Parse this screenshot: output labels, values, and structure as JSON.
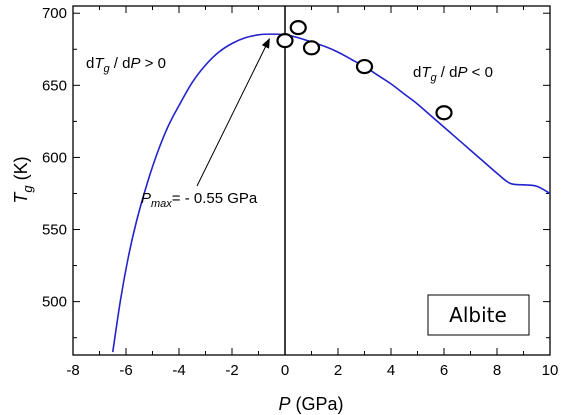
{
  "chart_data": {
    "type": "scatter",
    "title": "",
    "xlabel": {
      "symbol": "P",
      "unit": "(GPa)"
    },
    "ylabel": {
      "symbol": "T",
      "subscript": "g",
      "unit": "(K)"
    },
    "xlim": [
      -8,
      10
    ],
    "ylim": [
      463,
      705
    ],
    "x_ticks": [
      -8,
      -6,
      -4,
      -2,
      0,
      2,
      4,
      6,
      8,
      10
    ],
    "y_ticks": [
      500,
      550,
      600,
      650,
      700
    ],
    "grid": false,
    "series": [
      {
        "kind": "line",
        "color": "#2323cc",
        "x": [
          -6.5,
          -6.2,
          -5.9,
          -5.6,
          -5.2,
          -4.8,
          -4.4,
          -4.0,
          -3.5,
          -3.0,
          -2.5,
          -2.0,
          -1.5,
          -1.0,
          -0.55,
          0.0,
          0.5,
          1.0,
          1.5,
          2.0,
          2.5,
          3.0,
          3.5,
          4.0,
          4.5,
          5.0,
          5.5,
          6.0,
          6.5,
          7.0,
          7.5,
          8.0,
          8.5,
          9.0,
          9.5,
          10.0
        ],
        "y": [
          465,
          502,
          532,
          556,
          582,
          604,
          622,
          636,
          652,
          664,
          673,
          679,
          683,
          685,
          685.5,
          685,
          683,
          680,
          677,
          673,
          668,
          663,
          657,
          651,
          644,
          637,
          629,
          621,
          613,
          605,
          597,
          589,
          582,
          581,
          580,
          575
        ]
      },
      {
        "kind": "points",
        "marker": "open-circle",
        "x": [
          0.0,
          0.5,
          1.0,
          3.0,
          6.0
        ],
        "y": [
          681,
          690,
          676,
          663,
          631
        ]
      }
    ],
    "vertical_line_x": 0,
    "annotations": {
      "left_region": {
        "prefix": "d",
        "sym1": "T",
        "sub1": "g",
        "mid": " / d",
        "sym2": "P",
        "rel": " > 0"
      },
      "right_region": {
        "prefix": "d",
        "sym1": "T",
        "sub1": "g",
        "mid": " / d",
        "sym2": "P",
        "rel": " < 0"
      },
      "pmax": {
        "sym": "P",
        "sub": "max",
        "rest": "= - 0.55 GPa",
        "arrow_to": [
          -0.55,
          685
        ]
      }
    },
    "legend_box_text": "Albite"
  }
}
